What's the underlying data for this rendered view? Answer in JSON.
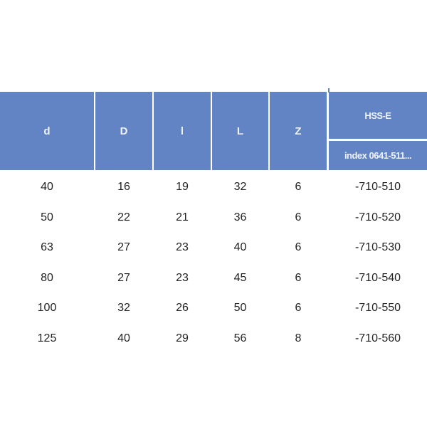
{
  "header": {
    "columns": [
      "d",
      "D",
      "l",
      "L",
      "Z"
    ],
    "group_title": "HSS-E",
    "group_sub": "index 0641-511..."
  },
  "rows": [
    [
      "40",
      "16",
      "19",
      "32",
      "6",
      "-710-510"
    ],
    [
      "50",
      "22",
      "21",
      "36",
      "6",
      "-710-520"
    ],
    [
      "63",
      "27",
      "23",
      "40",
      "6",
      "-710-530"
    ],
    [
      "80",
      "27",
      "23",
      "45",
      "6",
      "-710-540"
    ],
    [
      "100",
      "32",
      "26",
      "50",
      "6",
      "-710-550"
    ],
    [
      "125",
      "40",
      "29",
      "56",
      "8",
      "-710-560"
    ]
  ],
  "colors": {
    "header_bg": "#6384c4",
    "header_text": "#eef2fb"
  }
}
